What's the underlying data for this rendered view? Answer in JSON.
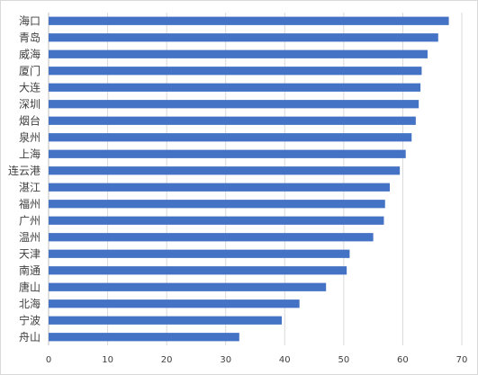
{
  "chart_data": {
    "type": "bar",
    "orientation": "horizontal",
    "categories": [
      "海口",
      "青岛",
      "威海",
      "厦门",
      "大连",
      "深圳",
      "烟台",
      "泉州",
      "上海",
      "连云港",
      "湛江",
      "福州",
      "广州",
      "温州",
      "天津",
      "南通",
      "唐山",
      "北海",
      "宁波",
      "舟山"
    ],
    "values": [
      67.8,
      66,
      64.2,
      63.2,
      63,
      62.7,
      62.2,
      61.5,
      60.5,
      59.5,
      57.8,
      57,
      56.8,
      55,
      51,
      50.5,
      47,
      42.5,
      39.5,
      32.3
    ],
    "title": "",
    "xlabel": "",
    "ylabel": "",
    "xlim": [
      0,
      70
    ],
    "x_ticks": [
      "0",
      "10",
      "20",
      "30",
      "40",
      "50",
      "60",
      "70"
    ],
    "grid": true,
    "legend": "none",
    "bar_color": "#4472C4",
    "grid_color": "#d9d9d9",
    "axis_color": "#bfbfbf"
  }
}
